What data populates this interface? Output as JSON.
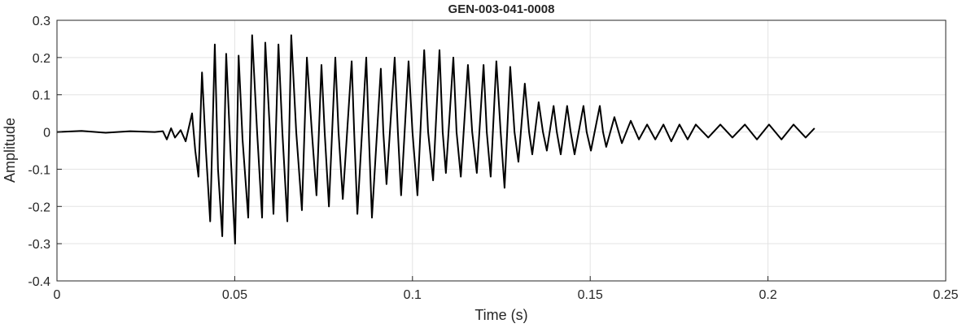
{
  "chart_data": {
    "type": "line",
    "title": "GEN-003-041-0008",
    "xlabel": "Time (s)",
    "ylabel": "Amplitude",
    "color": "#000000",
    "grid": true,
    "xlim": [
      0,
      0.25
    ],
    "xticks": [
      0,
      0.05,
      0.1,
      0.15,
      0.2,
      0.25
    ],
    "ylim": [
      -0.4,
      0.3
    ],
    "yticks": [
      -0.4,
      -0.3,
      -0.2,
      -0.1,
      0,
      0.1,
      0.2,
      0.3
    ],
    "x": [
      0,
      0.0069,
      0.0137,
      0.0206,
      0.0275,
      0.0298,
      0.0309,
      0.0321,
      0.0332,
      0.0348,
      0.0362,
      0.038,
      0.0389,
      0.0398,
      0.0408,
      0.0419,
      0.0431,
      0.0444,
      0.0453,
      0.0465,
      0.0476,
      0.0488,
      0.0501,
      0.0511,
      0.0522,
      0.0538,
      0.0549,
      0.0563,
      0.0577,
      0.0586,
      0.0598,
      0.0609,
      0.0623,
      0.0634,
      0.0648,
      0.0659,
      0.0673,
      0.0689,
      0.0703,
      0.0717,
      0.073,
      0.0744,
      0.0753,
      0.0765,
      0.0783,
      0.0792,
      0.0804,
      0.0829,
      0.0836,
      0.0845,
      0.087,
      0.0877,
      0.0886,
      0.0911,
      0.0918,
      0.0927,
      0.095,
      0.0959,
      0.0968,
      0.0989,
      0.1,
      0.1014,
      0.1033,
      0.1044,
      0.1058,
      0.1076,
      0.1085,
      0.1094,
      0.1115,
      0.1124,
      0.1136,
      0.1156,
      0.1168,
      0.1181,
      0.12,
      0.1209,
      0.122,
      0.1236,
      0.1248,
      0.1259,
      0.1275,
      0.1287,
      0.1298,
      0.1316,
      0.1328,
      0.1337,
      0.1355,
      0.1367,
      0.1378,
      0.1397,
      0.1406,
      0.1417,
      0.1435,
      0.1445,
      0.1456,
      0.1481,
      0.149,
      0.1502,
      0.1527,
      0.1536,
      0.1545,
      0.1568,
      0.158,
      0.1589,
      0.1614,
      0.1637,
      0.166,
      0.1683,
      0.1706,
      0.1728,
      0.1751,
      0.1774,
      0.1797,
      0.1832,
      0.1866,
      0.19,
      0.1935,
      0.1969,
      0.2003,
      0.2038,
      0.2072,
      0.2106,
      0.2131
    ],
    "values": [
      0,
      0.003,
      -0.002,
      0.002,
      0,
      0.002,
      -0.02,
      0.01,
      -0.015,
      0.005,
      -0.025,
      0.05,
      -0.05,
      -0.12,
      0.16,
      -0.05,
      -0.24,
      0.235,
      -0.1,
      -0.28,
      0.21,
      -0.05,
      -0.3,
      0.205,
      -0.02,
      -0.23,
      0.26,
      0,
      -0.23,
      0.24,
      0.02,
      -0.22,
      0.235,
      0,
      -0.24,
      0.26,
      0,
      -0.21,
      0.2,
      0,
      -0.17,
      0.18,
      0,
      -0.2,
      0.2,
      0,
      -0.18,
      0.19,
      0,
      -0.22,
      0.2,
      0,
      -0.23,
      0.17,
      0,
      -0.14,
      0.2,
      0,
      -0.17,
      0.19,
      0,
      -0.17,
      0.22,
      0,
      -0.13,
      0.22,
      0,
      -0.11,
      0.2,
      0,
      -0.12,
      0.18,
      0,
      -0.11,
      0.18,
      0,
      -0.12,
      0.19,
      0,
      -0.15,
      0.175,
      0,
      -0.08,
      0.13,
      0,
      -0.06,
      0.08,
      0,
      -0.05,
      0.07,
      0,
      -0.06,
      0.07,
      0,
      -0.06,
      0.07,
      0,
      -0.05,
      0.07,
      0,
      -0.04,
      0.04,
      0,
      -0.03,
      0.03,
      -0.02,
      0.02,
      -0.02,
      0.02,
      -0.025,
      0.02,
      -0.02,
      0.02,
      -0.015,
      0.02,
      -0.015,
      0.02,
      -0.02,
      0.02,
      -0.02,
      0.02,
      -0.015,
      0.01
    ]
  }
}
